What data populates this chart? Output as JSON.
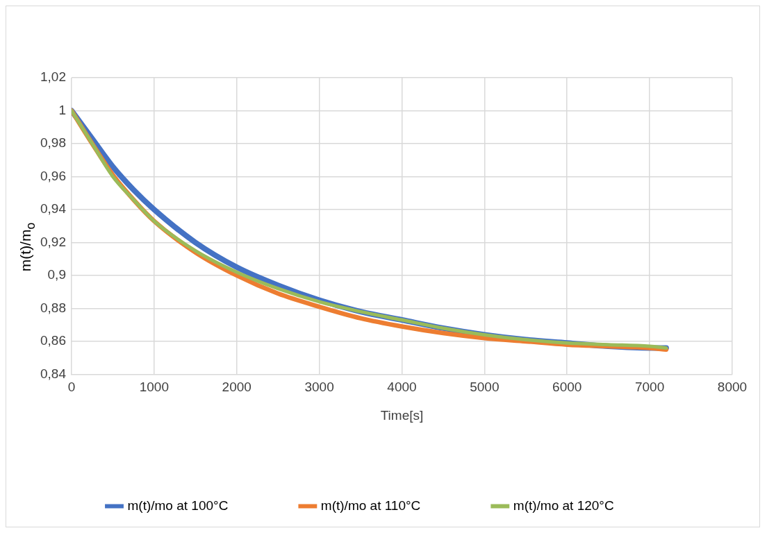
{
  "chart_data": {
    "type": "line",
    "xlabel": "Time[s]",
    "ylabel": "m(t)/m$_{o}$",
    "xlim": [
      0,
      8000
    ],
    "xticks": [
      0,
      1000,
      2000,
      3000,
      4000,
      5000,
      6000,
      7000,
      8000
    ],
    "ylim": [
      0.84,
      1.02
    ],
    "yticks": [
      {
        "value": 0.84,
        "label": "0,84"
      },
      {
        "value": 0.86,
        "label": "0,86"
      },
      {
        "value": 0.88,
        "label": "0,88"
      },
      {
        "value": 0.9,
        "label": "0,9"
      },
      {
        "value": 0.92,
        "label": "0,92"
      },
      {
        "value": 0.94,
        "label": "0,94"
      },
      {
        "value": 0.96,
        "label": "0,96"
      },
      {
        "value": 0.98,
        "label": "0,98"
      },
      1,
      {
        "value": 1.02,
        "label": "1,02"
      }
    ],
    "x": [
      0,
      250,
      500,
      750,
      1000,
      1500,
      2000,
      2500,
      3000,
      3500,
      4000,
      4500,
      5000,
      5500,
      6000,
      6500,
      7000,
      7200
    ],
    "series": [
      {
        "name": "m(t)/mo at 100°C",
        "color": "#4472c4",
        "values": [
          1.0,
          0.983,
          0.966,
          0.952,
          0.94,
          0.92,
          0.905,
          0.894,
          0.885,
          0.878,
          0.873,
          0.868,
          0.864,
          0.861,
          0.859,
          0.857,
          0.856,
          0.856
        ]
      },
      {
        "name": "m(t)/mo at 110°C",
        "color": "#ed7d31",
        "values": [
          1.0,
          0.98,
          0.961,
          0.946,
          0.933,
          0.914,
          0.9,
          0.889,
          0.881,
          0.874,
          0.869,
          0.865,
          0.862,
          0.86,
          0.858,
          0.857,
          0.856,
          0.855
        ]
      },
      {
        "name": "m(t)/mo at 120°C",
        "color": "#9bbb59",
        "values": [
          1.0,
          0.98,
          0.96,
          0.946,
          0.933,
          0.915,
          0.902,
          0.892,
          0.884,
          0.878,
          0.873,
          0.868,
          0.864,
          0.861,
          0.859,
          0.858,
          0.857,
          0.856
        ]
      }
    ],
    "grid": true,
    "legend": "bottom",
    "marker": "none",
    "line_style": "solid"
  }
}
